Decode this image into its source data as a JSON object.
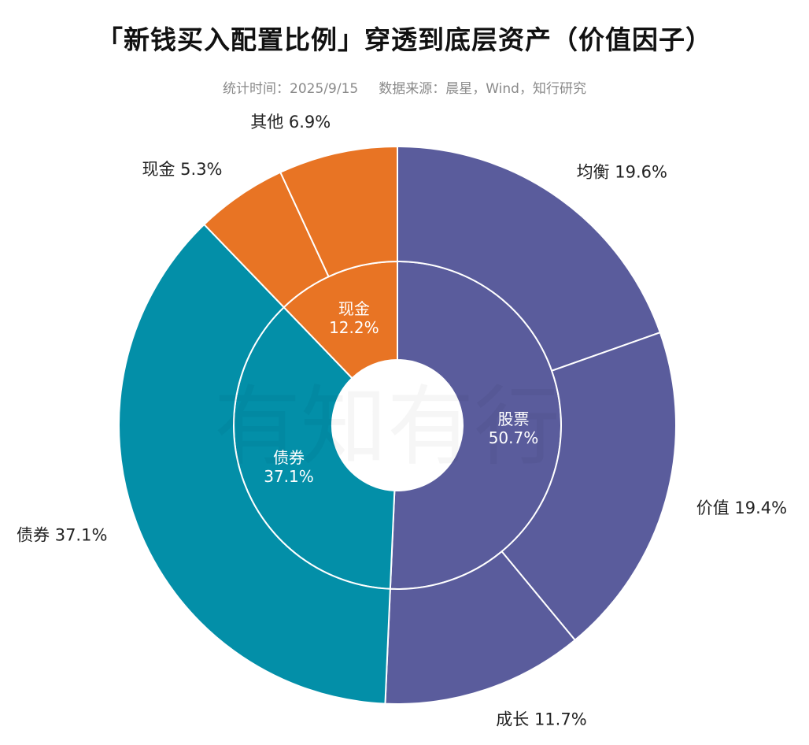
{
  "title": "「新钱买入配置比例」穿透到底层资产（价值因子）",
  "subtitle": {
    "date": "统计时间：2025/9/15",
    "source": "数据来源：晨星，Wind，知行研究"
  },
  "watermark": "有知有行",
  "colors": {
    "stock": "#5a5c9c",
    "bond": "#038fa8",
    "cash": "#e87424"
  },
  "chart_data": {
    "type": "sunburst",
    "inner": [
      {
        "name": "股票",
        "value": 50.7,
        "label": "50.7%",
        "color": "#5a5c9c"
      },
      {
        "name": "债券",
        "value": 37.1,
        "label": "37.1%",
        "color": "#038fa8"
      },
      {
        "name": "现金",
        "value": 12.2,
        "label": "12.2%",
        "color": "#e87424"
      }
    ],
    "outer": [
      {
        "name": "均衡",
        "value": 19.6,
        "label": "19.6%",
        "parent": "股票"
      },
      {
        "name": "价值",
        "value": 19.4,
        "label": "19.4%",
        "parent": "股票"
      },
      {
        "name": "成长",
        "value": 11.7,
        "label": "11.7%",
        "parent": "股票"
      },
      {
        "name": "债券",
        "value": 37.1,
        "label": "37.1%",
        "parent": "债券"
      },
      {
        "name": "现金",
        "value": 5.3,
        "label": "5.3%",
        "parent": "现金"
      },
      {
        "name": "其他",
        "value": 6.9,
        "label": "6.9%",
        "parent": "现金"
      }
    ]
  }
}
